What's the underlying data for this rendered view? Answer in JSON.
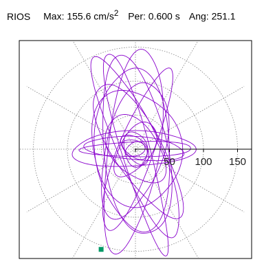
{
  "header": {
    "station": "RIOS",
    "max_label": "Max:",
    "max_value": "155.6 cm/s",
    "max_sup": "2",
    "per_label": "Per:",
    "per_value": "0.600 s",
    "ang_label": "Ang:",
    "ang_value": "251.1"
  },
  "colors": {
    "trace": "#8800cc",
    "marker": "#009966",
    "grid": "#808080",
    "axis": "#000000"
  },
  "chart_data": {
    "type": "polar-orbit",
    "title": "",
    "radial_ticks": [
      0,
      50,
      100,
      150
    ],
    "radial_tick_labels": [
      "50",
      "100",
      "150"
    ],
    "r_max": 155.6,
    "angular_grid_deg": [
      0,
      30,
      60,
      90,
      120,
      150,
      180,
      210,
      240,
      270,
      300,
      330
    ],
    "grid": true,
    "peak_marker": {
      "magnitude": 155.6,
      "angle_deg": 251.1
    },
    "orbit_loops": [
      {
        "ax": 21,
        "by": 154,
        "phi": 16,
        "cx": 0,
        "cy": 0
      },
      {
        "ax": 38,
        "by": 150,
        "phi": -8,
        "cx": -4,
        "cy": 0
      },
      {
        "ax": 31,
        "by": 143,
        "phi": 24,
        "cx": 3,
        "cy": 2
      },
      {
        "ax": 47,
        "by": 132,
        "phi": 9,
        "cx": 0,
        "cy": 0
      },
      {
        "ax": 26,
        "by": 126,
        "phi": -21,
        "cx": 1,
        "cy": -3
      },
      {
        "ax": 55,
        "by": 119,
        "phi": 4,
        "cx": -2,
        "cy": 0
      },
      {
        "ax": 36,
        "by": 112,
        "phi": 31,
        "cx": 3,
        "cy": 0
      },
      {
        "ax": 43,
        "by": 102,
        "phi": -15,
        "cx": -2,
        "cy": 0
      },
      {
        "ax": 65,
        "by": 86,
        "phi": 13,
        "cx": 0,
        "cy": 2
      },
      {
        "ax": 90,
        "by": 26,
        "phi": 2,
        "cx": -4,
        "cy": 0
      },
      {
        "ax": 73,
        "by": 17,
        "phi": -4,
        "cx": 0,
        "cy": 1
      },
      {
        "ax": 82,
        "by": 11,
        "phi": 1,
        "cx": 4,
        "cy": 0
      },
      {
        "ax": 34,
        "by": 57,
        "phi": 38,
        "cx": 0,
        "cy": 0
      },
      {
        "ax": 23,
        "by": 45,
        "phi": -33,
        "cx": 0,
        "cy": 0
      },
      {
        "ax": 17,
        "by": 26,
        "phi": 11,
        "cx": 0,
        "cy": 0
      },
      {
        "ax": 12,
        "by": 20,
        "phi": 60,
        "cx": 0,
        "cy": 0
      },
      {
        "ax": 26,
        "by": 15,
        "phi": -48,
        "cx": 0,
        "cy": 0
      },
      {
        "ax": 15,
        "by": 10,
        "phi": 22,
        "cx": 0,
        "cy": 0
      }
    ]
  }
}
